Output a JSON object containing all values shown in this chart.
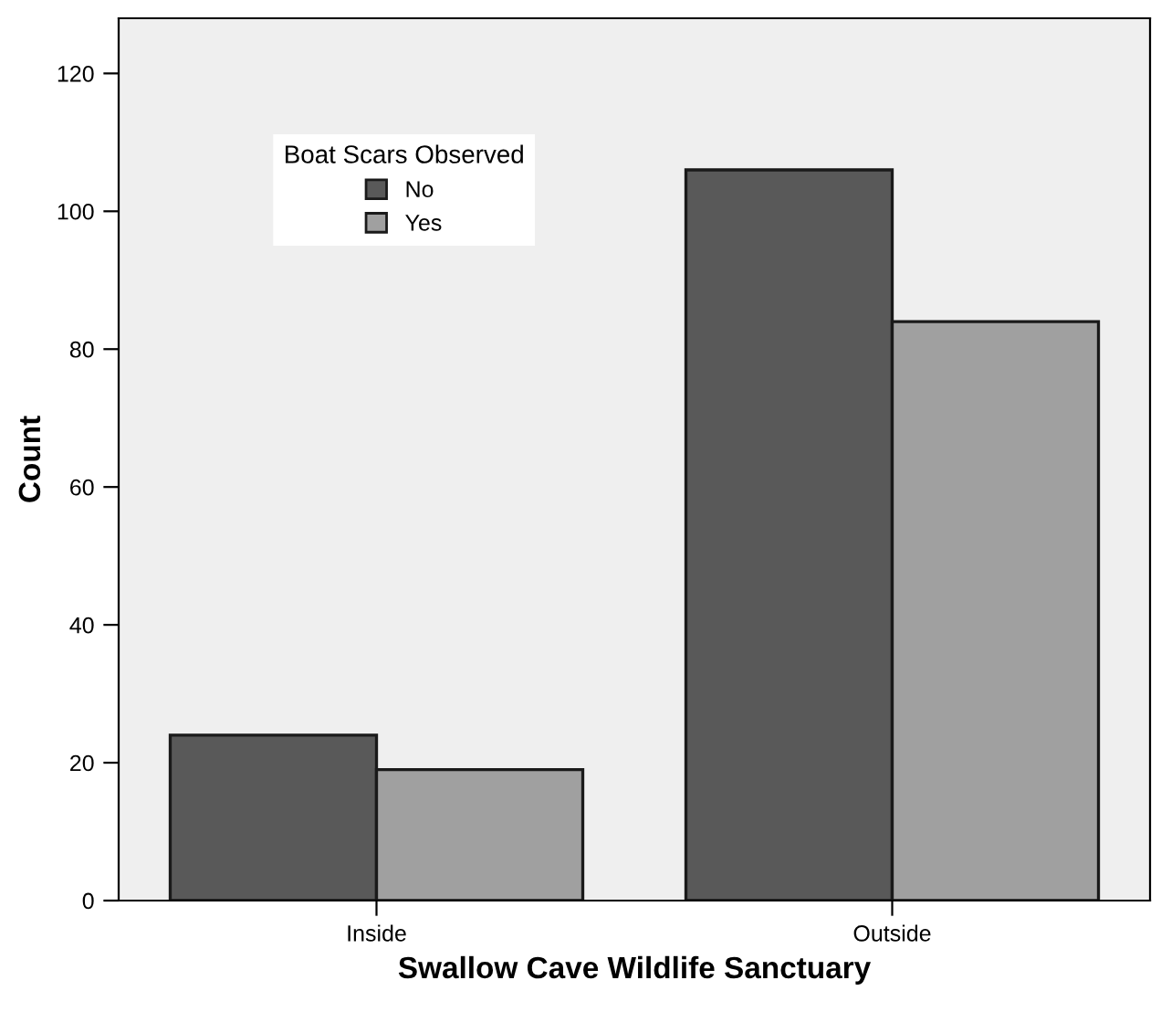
{
  "chart_data": {
    "type": "bar",
    "xlabel": "Swallow Cave Wildlife Sanctuary",
    "ylabel": "Count",
    "categories": [
      "Inside",
      "Outside"
    ],
    "series": [
      {
        "name": "No",
        "color": "#595959",
        "values": [
          24,
          106
        ]
      },
      {
        "name": "Yes",
        "color": "#a0a0a0",
        "values": [
          19,
          84
        ]
      }
    ],
    "legend_title": "Boat Scars Observed",
    "legend": "top left",
    "ylim": [
      0,
      128
    ],
    "yticks": [
      0,
      20,
      40,
      60,
      80,
      100,
      120
    ],
    "grid": false
  }
}
